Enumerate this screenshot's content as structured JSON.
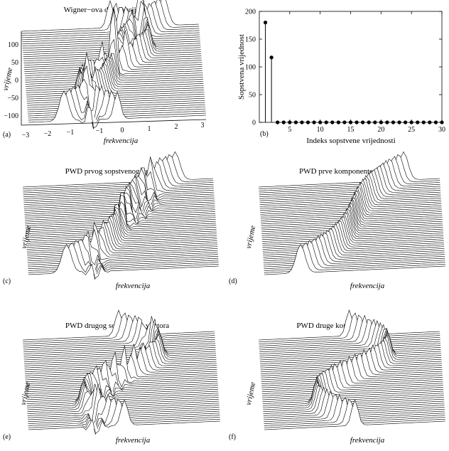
{
  "panels": {
    "a": {
      "tag": "(a)",
      "title": "Wigner−ova distribucija signala",
      "xlabel": "frekvencija",
      "ylabel": "vrijeme",
      "xticks": [
        "−3",
        "−2",
        "−1",
        "0",
        "1",
        "2",
        "3"
      ],
      "yticks": [
        "100",
        "50",
        "0",
        "−50",
        "−100"
      ]
    },
    "b": {
      "tag": "(b)",
      "xlabel": "Indeks sopstvene vrijednosti",
      "ylabel": "Sopstvena vrijednost",
      "xticks": [
        "5",
        "10",
        "15",
        "20",
        "25",
        "30"
      ],
      "yticks": [
        "0",
        "50",
        "100",
        "150",
        "200"
      ]
    },
    "c": {
      "tag": "(c)",
      "title": "PWD prvog sopstvenog vektora",
      "xlabel": "frekvencija",
      "ylabel": "vrijeme"
    },
    "d": {
      "tag": "(d)",
      "title": "PWD prve komponente",
      "xlabel": "frekvencija",
      "ylabel": "vrijeme"
    },
    "e": {
      "tag": "(e)",
      "title": "PWD drugog sopstvenog vektora",
      "xlabel": "frekvencija",
      "ylabel": "vrijeme"
    },
    "f": {
      "tag": "(f)",
      "title": "PWD druge komponente",
      "xlabel": "frekvencija",
      "ylabel": "vrijeme"
    }
  },
  "chart_data": [
    {
      "panel": "b",
      "type": "scatter",
      "style": "stem",
      "xlabel": "Indeks sopstvene vrijednosti",
      "ylabel": "Sopstvena vrijednost",
      "xlim": [
        0,
        30
      ],
      "ylim": [
        0,
        200
      ],
      "x": [
        1,
        2,
        3,
        4,
        5,
        6,
        7,
        8,
        9,
        10,
        11,
        12,
        13,
        14,
        15,
        16,
        17,
        18,
        19,
        20,
        21,
        22,
        23,
        24,
        25,
        26,
        27,
        28,
        29,
        30
      ],
      "values": [
        180,
        117,
        0,
        0,
        0,
        0,
        0,
        0,
        0,
        0,
        0,
        0,
        0,
        0,
        0,
        0,
        0,
        0,
        0,
        0,
        0,
        0,
        0,
        0,
        0,
        0,
        0,
        0,
        0,
        0
      ]
    },
    {
      "panel": "a",
      "type": "area",
      "style": "waterfall-3d",
      "title": "Wigner−ova distribucija signala",
      "xlabel": "frekvencija",
      "ylabel": "vrijeme",
      "xlim": [
        -3,
        3
      ],
      "ylim": [
        -128,
        128
      ],
      "components": [
        "both",
        "cross-terms"
      ]
    },
    {
      "panel": "c",
      "type": "area",
      "style": "waterfall-3d",
      "title": "PWD prvog sopstvenog vektora",
      "components": [
        "first",
        "residual"
      ]
    },
    {
      "panel": "d",
      "type": "area",
      "style": "waterfall-3d",
      "title": "PWD prve komponente",
      "components": [
        "first"
      ]
    },
    {
      "panel": "e",
      "type": "area",
      "style": "waterfall-3d",
      "title": "PWD drugog sopstvenog vektora",
      "components": [
        "second",
        "residual"
      ]
    },
    {
      "panel": "f",
      "type": "area",
      "style": "waterfall-3d",
      "title": "PWD druge komponente",
      "components": [
        "second"
      ]
    }
  ]
}
